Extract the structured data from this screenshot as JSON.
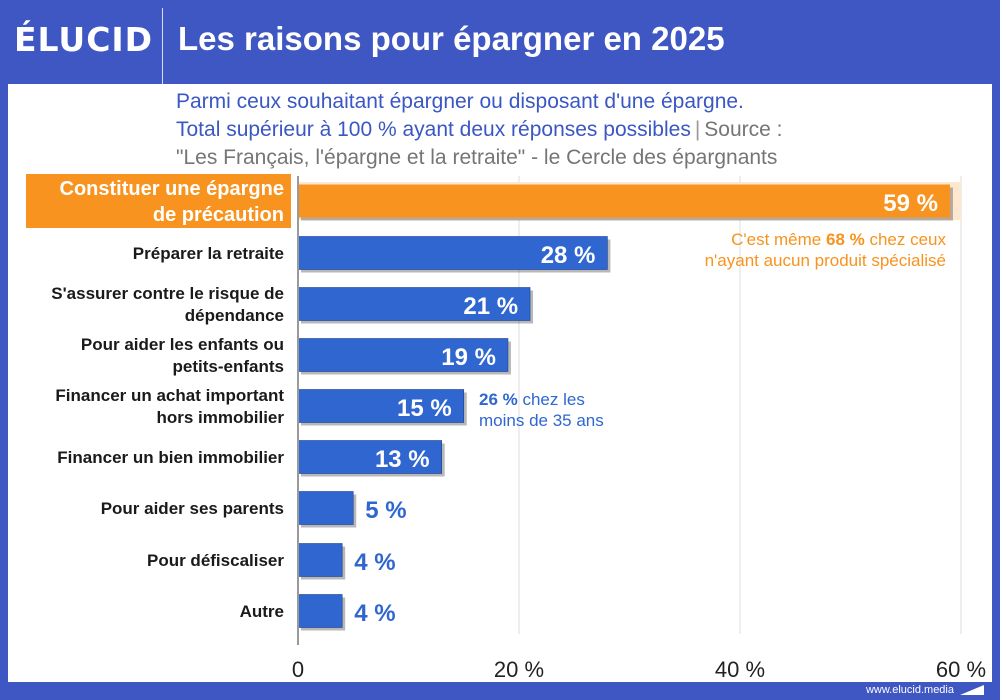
{
  "brand": {
    "logo_text": "ÉLUCID",
    "footer_url": "www.elucid.media"
  },
  "header": {
    "title": "Les raisons pour épargner en 2025"
  },
  "subtitle": {
    "line1": "Parmi ceux souhaitant épargner ou disposant d'une épargne.",
    "line2": "Total supérieur à 100 % ayant deux réponses possibles",
    "separator": "|",
    "source_label": "Source :",
    "line3": "\"Les Français, l'épargne et la retraite\" - le Cercle des épargnants"
  },
  "colors": {
    "highlight": "#f7931e",
    "bar": "#2f66d0",
    "background": "#3f57c2"
  },
  "chart_data": {
    "type": "bar",
    "orientation": "horizontal",
    "categories": [
      [
        "Constituer une épargne",
        "de précaution"
      ],
      [
        "Préparer la retraite"
      ],
      [
        "S'assurer contre le risque de",
        "dépendance"
      ],
      [
        "Pour aider les enfants ou",
        "petits-enfants"
      ],
      [
        "Financer un achat important",
        "hors immobilier"
      ],
      [
        "Financer un bien immobilier"
      ],
      [
        "Pour aider ses parents"
      ],
      [
        "Pour défiscaliser"
      ],
      [
        "Autre"
      ]
    ],
    "values": [
      59,
      28,
      21,
      19,
      15,
      13,
      5,
      4,
      4
    ],
    "value_labels": [
      "59 %",
      "28 %",
      "21 %",
      "19 %",
      "15 %",
      "13 %",
      "5 %",
      "4 %",
      "4 %"
    ],
    "highlight_index": 0,
    "xlim": [
      0,
      60
    ],
    "xticks": [
      0,
      20,
      40,
      60
    ],
    "xtick_labels": [
      "0",
      "20 %",
      "40 %",
      "60 %"
    ],
    "grid": true,
    "annotations": [
      {
        "bar_index": 0,
        "lines": [
          [
            "C'est même ",
            "68 %",
            " chez ceux"
          ],
          [
            "n'ayant aucun produit spécialisé"
          ]
        ],
        "color": "#f7931e"
      },
      {
        "bar_index": 4,
        "lines": [
          [
            "",
            "26 %",
            " chez les"
          ],
          [
            "moins de 35 ans"
          ]
        ],
        "color": "#2f66d0"
      }
    ]
  }
}
